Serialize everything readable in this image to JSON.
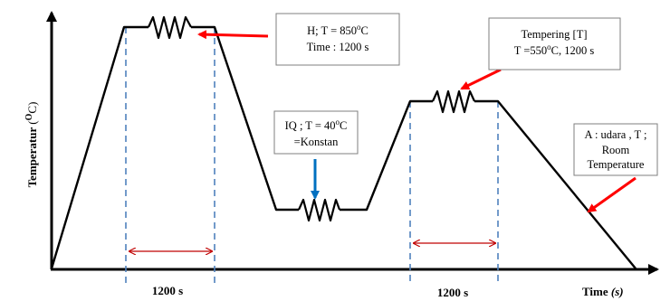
{
  "axes": {
    "y_title": "Temperatur",
    "y_unit_prefix": "(",
    "y_unit_sup": "O",
    "y_unit_letter": "C",
    "y_unit_suffix": ")",
    "x_title": "Time",
    "x_unit": "(s)"
  },
  "boxes": {
    "hardening": {
      "line1_prefix": "H; T = 850",
      "line1_sup": "o",
      "line1_suffix": "C",
      "line2": "Time : 1200 s"
    },
    "quenching": {
      "line1_prefix": "IQ ; T = 40",
      "line1_sup": "o",
      "line1_suffix": "C",
      "line2": "=Konstan"
    },
    "tempering": {
      "line1": "Tempering  [T]",
      "line2_prefix": "T =550",
      "line2_sup": "o",
      "line2_suffix": "C, 1200  s"
    },
    "cooling": {
      "line1": "A : udara , T ;",
      "line2": "Room",
      "line3": "Temperature"
    }
  },
  "durations": {
    "first": "1200 s",
    "second": "1200 s"
  },
  "colors": {
    "curve": "#000000",
    "dashed": "#4f81bd",
    "pointer_red": "#ff0000",
    "pointer_blue": "#0070c0",
    "dimension": "#c00000",
    "box_border": "#7f7f7f"
  }
}
